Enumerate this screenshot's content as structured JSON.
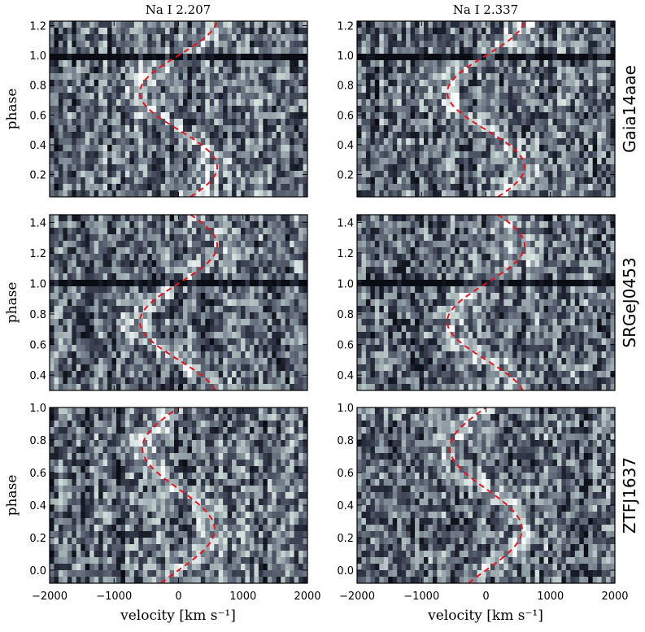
{
  "figure": {
    "col_titles": [
      "Na I 2.207",
      "Na I 2.337"
    ],
    "xlabel": "velocity [km s⁻¹]",
    "ylabel": "phase"
  },
  "chart_data": [
    {
      "type": "heatmap",
      "object": "Gaia14aae",
      "line": "Na I 2.207",
      "col": 0,
      "row": 0,
      "xlim": [
        -2000,
        2000
      ],
      "ylim": [
        0.05,
        1.23
      ],
      "xticks": [
        -2000,
        -1000,
        0,
        1000,
        2000
      ],
      "yticks": [
        0.2,
        0.4,
        0.6,
        0.8,
        1.0,
        1.2
      ],
      "ytick_labels": [
        "0.2",
        "0.4",
        "0.6",
        "0.8",
        "1.0",
        "1.2"
      ],
      "show_xticklabels": false,
      "show_yticklabels": true,
      "show_ylabel": true,
      "show_rowlabel": false,
      "absorption_band_phase": 0.98,
      "rv_curve": {
        "gamma": 0,
        "K": 600,
        "phase0": 0.0,
        "style": "dashed",
        "color": "#e8141c"
      }
    },
    {
      "type": "heatmap",
      "object": "Gaia14aae",
      "line": "Na I 2.337",
      "col": 1,
      "row": 0,
      "xlim": [
        -2000,
        2000
      ],
      "ylim": [
        0.05,
        1.23
      ],
      "xticks": [
        -2000,
        -1000,
        0,
        1000,
        2000
      ],
      "yticks": [
        0.2,
        0.4,
        0.6,
        0.8,
        1.0,
        1.2
      ],
      "ytick_labels": [
        "0.2",
        "0.4",
        "0.6",
        "0.8",
        "1.0",
        "1.2"
      ],
      "show_xticklabels": false,
      "show_yticklabels": true,
      "show_ylabel": false,
      "show_rowlabel": true,
      "rowlabel": "Gaia14aae",
      "absorption_band_phase": 0.98,
      "rv_curve": {
        "gamma": 0,
        "K": 600,
        "phase0": 0.0,
        "style": "dashed",
        "color": "#e8141c"
      }
    },
    {
      "type": "heatmap",
      "object": "SRGeJ0453",
      "line": "Na I 2.207",
      "col": 0,
      "row": 1,
      "xlim": [
        -2000,
        2000
      ],
      "ylim": [
        0.3,
        1.45
      ],
      "xticks": [
        -2000,
        -1000,
        0,
        1000,
        2000
      ],
      "yticks": [
        0.4,
        0.6,
        0.8,
        1.0,
        1.2,
        1.4
      ],
      "ytick_labels": [
        "0.4",
        "0.6",
        "0.8",
        "1.0",
        "1.2",
        "1.4"
      ],
      "show_xticklabels": false,
      "show_yticklabels": true,
      "show_ylabel": true,
      "show_rowlabel": false,
      "absorption_band_phase": 1.01,
      "rv_curve": {
        "gamma": 0,
        "K": 600,
        "phase0": 0.0,
        "style": "dashed",
        "color": "#e8141c"
      }
    },
    {
      "type": "heatmap",
      "object": "SRGeJ0453",
      "line": "Na I 2.337",
      "col": 1,
      "row": 1,
      "xlim": [
        -2000,
        2000
      ],
      "ylim": [
        0.3,
        1.45
      ],
      "xticks": [
        -2000,
        -1000,
        0,
        1000,
        2000
      ],
      "yticks": [
        0.4,
        0.6,
        0.8,
        1.0,
        1.2,
        1.4
      ],
      "ytick_labels": [
        "0.4",
        "0.6",
        "0.8",
        "1.0",
        "1.2",
        "1.4"
      ],
      "show_xticklabels": false,
      "show_yticklabels": true,
      "show_ylabel": false,
      "show_rowlabel": true,
      "rowlabel": "SRGeJ0453",
      "absorption_band_phase": 1.01,
      "rv_curve": {
        "gamma": 0,
        "K": 600,
        "phase0": 0.0,
        "style": "dashed",
        "color": "#e8141c"
      }
    },
    {
      "type": "heatmap",
      "object": "ZTFJ1637",
      "line": "Na I 2.207",
      "col": 0,
      "row": 2,
      "xlim": [
        -2000,
        2000
      ],
      "ylim": [
        -0.08,
        1.0
      ],
      "xticks": [
        -2000,
        -1000,
        0,
        1000,
        2000
      ],
      "xtick_labels": [
        "−2000",
        "−1000",
        "0",
        "1000",
        "2000"
      ],
      "yticks": [
        0.0,
        0.2,
        0.4,
        0.6,
        0.8,
        1.0
      ],
      "ytick_labels": [
        "0.0",
        "0.2",
        "0.4",
        "0.6",
        "0.8",
        "1.0"
      ],
      "show_xticklabels": true,
      "show_yticklabels": true,
      "show_ylabel": true,
      "show_rowlabel": false,
      "absorption_band_phase": null,
      "rv_curve": {
        "gamma": 0,
        "K": 560,
        "phase0": 0.0,
        "style": "dashed",
        "color": "#e8141c"
      }
    },
    {
      "type": "heatmap",
      "object": "ZTFJ1637",
      "line": "Na I 2.337",
      "col": 1,
      "row": 2,
      "xlim": [
        -2000,
        2000
      ],
      "ylim": [
        -0.08,
        1.0
      ],
      "xticks": [
        -2000,
        -1000,
        0,
        1000,
        2000
      ],
      "xtick_labels": [
        "−2000",
        "−1000",
        "0",
        "1000",
        "2000"
      ],
      "yticks": [
        0.0,
        0.2,
        0.4,
        0.6,
        0.8,
        1.0
      ],
      "ytick_labels": [
        "0.0",
        "0.2",
        "0.4",
        "0.6",
        "0.8",
        "1.0"
      ],
      "show_xticklabels": true,
      "show_yticklabels": true,
      "show_ylabel": false,
      "show_rowlabel": true,
      "rowlabel": "ZTFJ1637",
      "absorption_band_phase": null,
      "rv_curve": {
        "gamma": 0,
        "K": 560,
        "phase0": 0.0,
        "style": "dashed",
        "color": "#e8141c"
      }
    }
  ],
  "colors": {
    "colormap": [
      "#0a0d14",
      "#2b3040",
      "#5a6272",
      "#8e9ba3",
      "#c6d5d3",
      "#ffffff"
    ],
    "rv_curve": "#e8141c",
    "frame": "#000000"
  }
}
